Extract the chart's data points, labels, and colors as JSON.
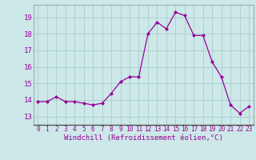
{
  "x": [
    0,
    1,
    2,
    3,
    4,
    5,
    6,
    7,
    8,
    9,
    10,
    11,
    12,
    13,
    14,
    15,
    16,
    17,
    18,
    19,
    20,
    21,
    22,
    23
  ],
  "y": [
    13.9,
    13.9,
    14.2,
    13.9,
    13.9,
    13.8,
    13.7,
    13.8,
    14.4,
    15.1,
    15.4,
    15.4,
    18.0,
    18.7,
    18.3,
    19.3,
    19.1,
    17.9,
    17.9,
    16.3,
    15.4,
    13.7,
    13.2,
    13.6
  ],
  "line_color": "#990099",
  "marker": "D",
  "marker_size": 2,
  "bg_color": "#cce8e8",
  "grid_color": "#aacccc",
  "xlabel": "Windchill (Refroidissement éolien,°C)",
  "xlabel_color": "#990099",
  "tick_color": "#990099",
  "label_color": "#990099",
  "ylim": [
    12.5,
    19.75
  ],
  "xlim": [
    -0.5,
    23.5
  ],
  "yticks": [
    13,
    14,
    15,
    16,
    17,
    18,
    19
  ],
  "xticks": [
    0,
    1,
    2,
    3,
    4,
    5,
    6,
    7,
    8,
    9,
    10,
    11,
    12,
    13,
    14,
    15,
    16,
    17,
    18,
    19,
    20,
    21,
    22,
    23
  ],
  "xlabel_fontsize": 6.5,
  "tick_fontsize": 5.5,
  "ytick_fontsize": 6.5
}
